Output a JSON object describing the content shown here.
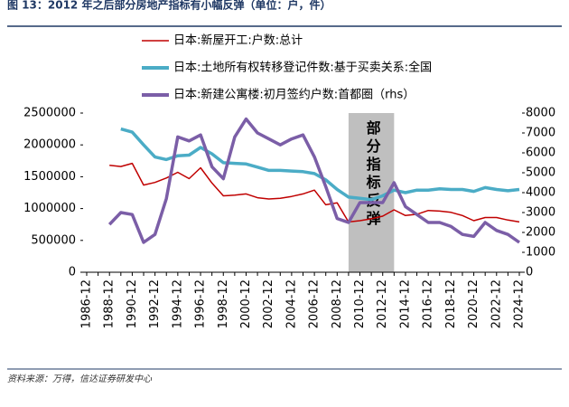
{
  "chart_data": {
    "type": "line",
    "title": "图 13：2012 年之后部分房地产指标有小幅反弹（单位：户，件）",
    "source": "资料来源：万得，信达证券研发中心",
    "categories": [
      "1986-12",
      null,
      "1988-12",
      null,
      "1990-12",
      null,
      "1992-12",
      null,
      "1994-12",
      null,
      "1996-12",
      null,
      "1998-12",
      null,
      "2000-12",
      null,
      "2002-12",
      null,
      "2004-12",
      null,
      "2006-12",
      null,
      "2008-12",
      null,
      "2010-12",
      null,
      "2012-12",
      null,
      "2014-12",
      null,
      "2016-12",
      null,
      "2018-12",
      null,
      "2020-12",
      null,
      "2022-12",
      null,
      "2024-12"
    ],
    "series": [
      {
        "name": "日本:新屋开工:户数:总计",
        "color": "#c00000",
        "values": [
          null,
          null,
          1680000,
          1660000,
          1710000,
          1370000,
          1410000,
          1480000,
          1570000,
          1470000,
          1640000,
          1400000,
          1200000,
          1210000,
          1230000,
          1170000,
          1150000,
          1160000,
          1190000,
          1230000,
          1290000,
          1060000,
          1090000,
          790000,
          810000,
          840000,
          880000,
          980000,
          890000,
          910000,
          970000,
          960000,
          940000,
          890000,
          810000,
          860000,
          860000,
          820000,
          790000
        ]
      },
      {
        "name": "日本:土地所有权转移登记件数:基于买卖关系:全国",
        "color": "#4bacc6",
        "values": [
          null,
          null,
          null,
          2250000,
          2200000,
          2000000,
          1810000,
          1770000,
          1830000,
          1840000,
          1960000,
          1860000,
          1720000,
          1710000,
          1700000,
          1650000,
          1600000,
          1600000,
          1590000,
          1580000,
          1550000,
          1450000,
          1300000,
          1180000,
          1160000,
          1140000,
          1200000,
          1290000,
          1250000,
          1290000,
          1290000,
          1310000,
          1300000,
          1300000,
          1270000,
          1330000,
          1300000,
          1280000,
          1300000
        ]
      },
      {
        "name": "日本:新建公寓楼:初月签约户数:首都圈（rhs）",
        "color": "#7b5ea7",
        "axis": "y2",
        "values": [
          null,
          null,
          2400,
          3000,
          2900,
          1500,
          1900,
          3700,
          6800,
          6600,
          6900,
          5300,
          4700,
          6800,
          7700,
          7000,
          6700,
          6400,
          6700,
          6900,
          5800,
          4300,
          2700,
          2500,
          3500,
          3500,
          3500,
          4500,
          3300,
          2900,
          2500,
          2500,
          2300,
          1900,
          1800,
          2500,
          2100,
          1900,
          1500
        ]
      }
    ],
    "ylim": [
      0,
      2500000
    ],
    "yticks": [
      0,
      500000,
      1000000,
      1500000,
      2000000,
      2500000
    ],
    "y2lim": [
      0,
      8000
    ],
    "y2ticks": [
      0,
      1000,
      2000,
      3000,
      4000,
      5000,
      6000,
      7000,
      8000
    ],
    "highlight": {
      "from": "2009-12",
      "to": "2013-12",
      "label": "部分指标反弹"
    },
    "legend": "top"
  }
}
